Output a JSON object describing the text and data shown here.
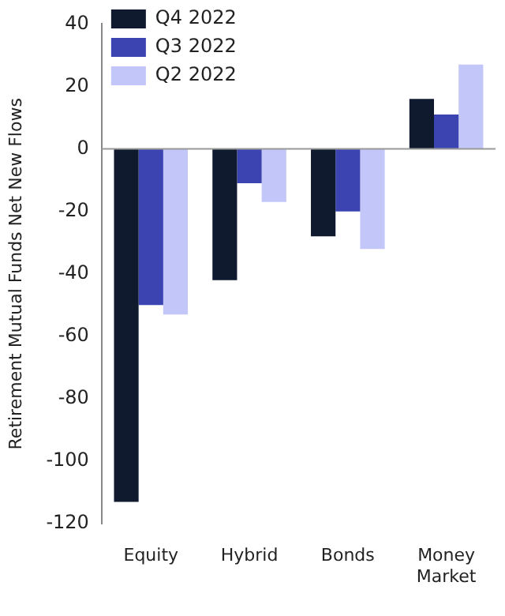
{
  "chart_data": {
    "type": "bar",
    "ylabel": "Retirement Mutual Funds Net New Flows",
    "categories": [
      "Equity",
      "Hybrid",
      "Bonds",
      "Money\nMarket"
    ],
    "series": [
      {
        "name": "Q4 2022",
        "color": "#0f1a2e",
        "values": [
          -113,
          -42,
          -28,
          16
        ]
      },
      {
        "name": "Q3 2022",
        "color": "#3b44b0",
        "values": [
          -50,
          -11,
          -20,
          11
        ]
      },
      {
        "name": "Q2 2022",
        "color": "#c3c6f8",
        "values": [
          -53,
          -17,
          -32,
          27
        ]
      }
    ],
    "ylim": [
      -120,
      40
    ],
    "yticks": [
      -120,
      -100,
      -80,
      -60,
      -40,
      -20,
      0,
      20,
      40
    ],
    "ref_lines": [
      {
        "axis": "y",
        "value": 0,
        "color": "#999999"
      }
    ],
    "grid": false,
    "legend": "top left"
  }
}
